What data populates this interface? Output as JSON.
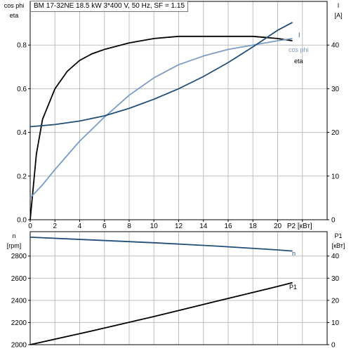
{
  "title": "BM 17-32NE   18.5 kW   3*400 V, 50 Hz, SF = 1.15",
  "colors": {
    "dark": "#000000",
    "blue": "#1f4e79",
    "lightblue": "#7a9cc6",
    "grid": "#bfbfbf"
  },
  "chart_data": [
    {
      "type": "line",
      "xlabel": "P2 [кВт]",
      "xlim": [
        0,
        24
      ],
      "xticks": [
        "0",
        "2",
        "4",
        "6",
        "8",
        "10",
        "12",
        "14",
        "16",
        "18",
        "20",
        "P2 [кВт]"
      ],
      "ylabel_left": [
        "cos phi",
        "eta"
      ],
      "ylim_left": [
        0,
        1
      ],
      "yticks_left": [
        "0.0",
        "0.2",
        "0.4",
        "0.6",
        "0.8"
      ],
      "ylabel_right": [
        "I",
        "[A]"
      ],
      "ylim_right": [
        0,
        50
      ],
      "yticks_right": [
        "0",
        "10",
        "20",
        "30",
        "40"
      ],
      "grid": true,
      "series": [
        {
          "name": "eta",
          "axis": "left",
          "color": "#000000",
          "x": [
            0,
            0.5,
            1,
            2,
            3,
            4,
            5,
            6,
            8,
            10,
            12,
            14,
            16,
            18,
            20,
            21.2
          ],
          "y": [
            0,
            0.3,
            0.46,
            0.6,
            0.68,
            0.73,
            0.76,
            0.78,
            0.81,
            0.83,
            0.84,
            0.84,
            0.84,
            0.84,
            0.83,
            0.82
          ]
        },
        {
          "name": "cos phi",
          "axis": "left",
          "color": "#7a9cc6",
          "x": [
            0,
            1,
            2,
            4,
            6,
            8,
            10,
            12,
            14,
            16,
            18,
            20,
            21.2
          ],
          "y": [
            0.1,
            0.16,
            0.23,
            0.36,
            0.47,
            0.57,
            0.65,
            0.71,
            0.75,
            0.78,
            0.8,
            0.82,
            0.83
          ]
        },
        {
          "name": "I",
          "axis": "right",
          "color": "#1f4e79",
          "x": [
            0,
            2,
            4,
            6,
            8,
            10,
            12,
            14,
            16,
            18,
            20,
            21.2
          ],
          "y": [
            21.3,
            21.8,
            22.6,
            23.8,
            25.5,
            27.6,
            30,
            32.8,
            36,
            39.6,
            43.4,
            45.2
          ]
        }
      ]
    },
    {
      "type": "line",
      "xlim": [
        0,
        24
      ],
      "ylabel_left": [
        "n",
        "[rpm]"
      ],
      "ylim_left": [
        2000,
        3020
      ],
      "yticks_left": [
        "2000",
        "2200",
        "2400",
        "2600",
        "2800"
      ],
      "ylabel_right": [
        "P1",
        "[кВт]"
      ],
      "ylim_right": [
        0,
        51
      ],
      "yticks_right": [
        "0",
        "10",
        "20",
        "30",
        "40"
      ],
      "grid": true,
      "series": [
        {
          "name": "n",
          "axis": "left",
          "color": "#1f4e79",
          "x": [
            0,
            5,
            10,
            15,
            20,
            21.2
          ],
          "y": [
            2970,
            2945,
            2920,
            2890,
            2855,
            2845
          ]
        },
        {
          "name": "P1",
          "axis": "right",
          "color": "#000000",
          "x": [
            0,
            5,
            10,
            15,
            20,
            21.2
          ],
          "y": [
            0,
            6.2,
            12.7,
            19.5,
            26.3,
            28
          ]
        }
      ]
    }
  ]
}
